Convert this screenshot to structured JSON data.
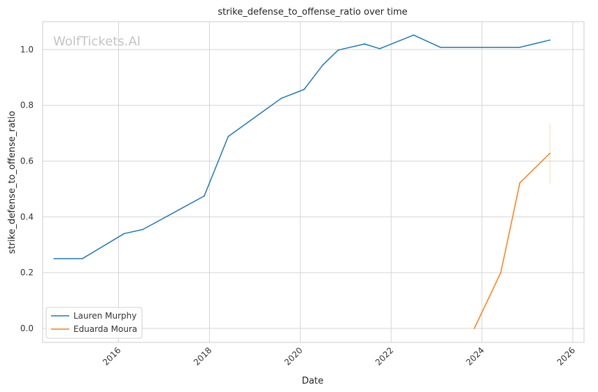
{
  "chart_data": {
    "type": "line",
    "title": "strike_defense_to_offense_ratio over time",
    "xlabel": "Date",
    "ylabel": "strike_defense_to_offense_ratio",
    "watermark": "WolfTickets.AI",
    "xlim": [
      "2014-05-01",
      "2026-04-01"
    ],
    "ylim": [
      -0.05,
      1.1
    ],
    "x_ticks": [
      "2016",
      "2018",
      "2020",
      "2022",
      "2024",
      "2026"
    ],
    "y_ticks": [
      "0.0",
      "0.2",
      "0.4",
      "0.6",
      "0.8",
      "1.0"
    ],
    "grid": true,
    "legend_position": "lower-left",
    "series": [
      {
        "name": "Lauren Murphy",
        "color": "#1f77b4",
        "points": [
          {
            "x": "2014-08-01",
            "y": 0.25
          },
          {
            "x": "2015-03-15",
            "y": 0.25
          },
          {
            "x": "2016-02-15",
            "y": 0.34
          },
          {
            "x": "2016-07-15",
            "y": 0.355
          },
          {
            "x": "2017-11-20",
            "y": 0.475
          },
          {
            "x": "2018-06-01",
            "y": 0.688
          },
          {
            "x": "2019-08-01",
            "y": 0.825
          },
          {
            "x": "2020-02-01",
            "y": 0.857
          },
          {
            "x": "2020-07-01",
            "y": 0.945
          },
          {
            "x": "2020-11-01",
            "y": 0.998
          },
          {
            "x": "2021-06-01",
            "y": 1.02
          },
          {
            "x": "2021-10-01",
            "y": 1.003
          },
          {
            "x": "2022-07-01",
            "y": 1.052
          },
          {
            "x": "2023-02-01",
            "y": 1.008
          },
          {
            "x": "2024-11-01",
            "y": 1.008
          },
          {
            "x": "2025-07-01",
            "y": 1.034
          }
        ]
      },
      {
        "name": "Eduarda Moura",
        "color": "#ff7f0e",
        "points": [
          {
            "x": "2023-11-01",
            "y": 0.0
          },
          {
            "x": "2024-06-01",
            "y": 0.2
          },
          {
            "x": "2024-11-01",
            "y": 0.522
          },
          {
            "x": "2025-07-01",
            "y": 0.628
          }
        ],
        "error_band": {
          "x": "2025-07-01",
          "low": 0.52,
          "high": 0.735
        }
      }
    ]
  }
}
